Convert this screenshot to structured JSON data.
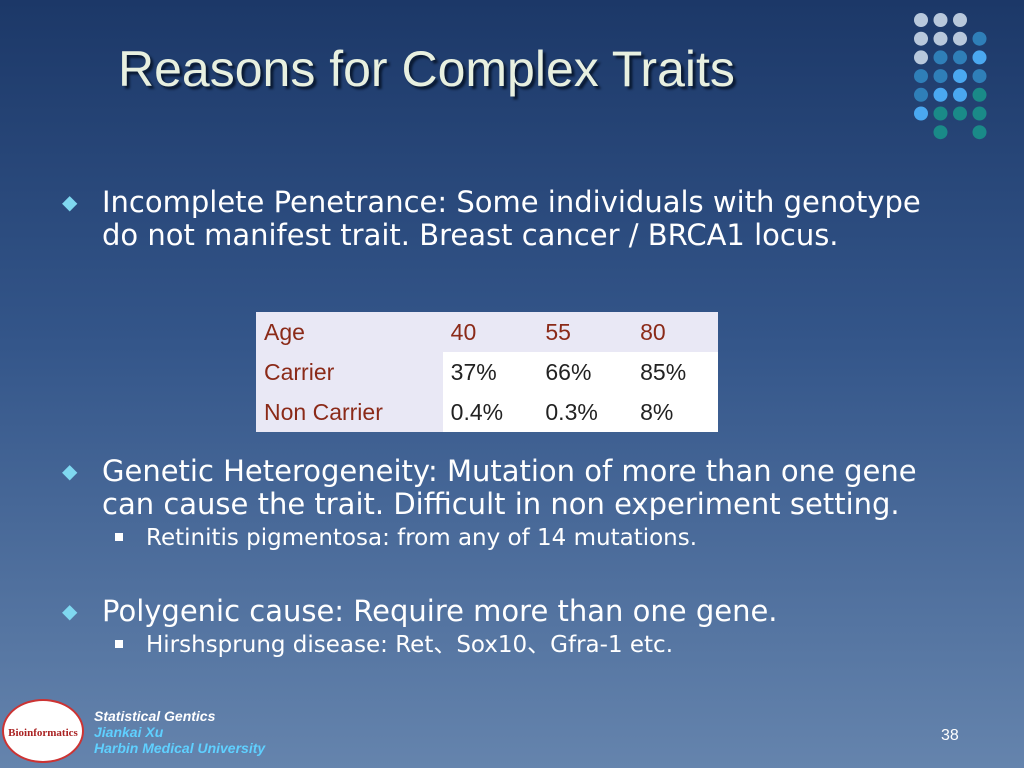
{
  "title": "Reasons for Complex Traits",
  "bullets": [
    {
      "text": "Incomplete Penetrance: Some individuals with genotype do not manifest trait. Breast cancer / BRCA1 locus.",
      "sub": []
    },
    {
      "text": "Genetic Heterogeneity: Mutation of more than one gene can cause the trait. Difficult in non experiment setting.",
      "sub": [
        "Retinitis pigmentosa: from any of 14 mutations."
      ]
    },
    {
      "text": "Polygenic cause: Require more than one gene.",
      "sub": [
        "Hirshsprung disease: Ret、Sox10、Gfra-1 etc."
      ]
    }
  ],
  "table": {
    "rows": [
      [
        "Age",
        "40",
        "55",
        "80"
      ],
      [
        "Carrier",
        "37%",
        "66%",
        "85%"
      ],
      [
        "Non Carrier",
        "0.4%",
        "0.3%",
        "8%"
      ]
    ]
  },
  "footer": {
    "course": "Statistical Gentics",
    "author": "Jiankai Xu",
    "institution": "Harbin Medical University"
  },
  "logo": "Bioinformatics",
  "page_number": "38"
}
